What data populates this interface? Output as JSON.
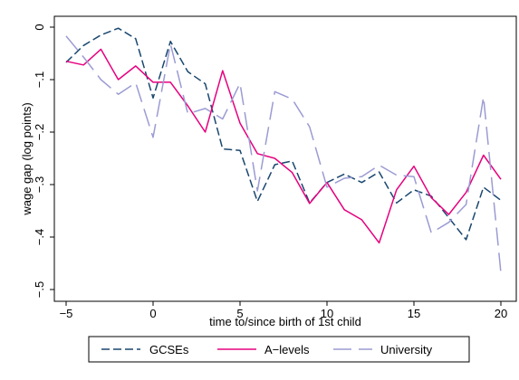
{
  "chart_data": {
    "type": "line",
    "title": "",
    "xlabel": "time to/since birth of 1st child",
    "ylabel": "wage gap (log points)",
    "xlim": [
      -5,
      20
    ],
    "ylim": [
      -0.52,
      0.01
    ],
    "x_ticks": [
      -5,
      0,
      5,
      10,
      15,
      20
    ],
    "y_ticks": [
      0,
      -0.1,
      -0.2,
      -0.3,
      -0.4,
      -0.5
    ],
    "x_tick_labels": [
      "−5",
      "0",
      "5",
      "10",
      "15",
      "20"
    ],
    "y_tick_labels": [
      "0",
      "−.1",
      "−.2",
      "−.3",
      "−.4",
      "−.5"
    ],
    "grid": false,
    "legend_position": "bottom",
    "x": [
      -5,
      -4,
      -3,
      -2,
      -1,
      0,
      1,
      2,
      3,
      4,
      5,
      6,
      7,
      8,
      9,
      10,
      11,
      12,
      13,
      14,
      15,
      16,
      17,
      18,
      19,
      20
    ],
    "series": [
      {
        "name": "GCSEs",
        "color": "#1a476f",
        "dash": "dashed",
        "values": [
          -0.067,
          -0.035,
          -0.015,
          -0.002,
          -0.022,
          -0.135,
          -0.027,
          -0.085,
          -0.108,
          -0.232,
          -0.235,
          -0.332,
          -0.262,
          -0.255,
          -0.335,
          -0.296,
          -0.28,
          -0.296,
          -0.276,
          -0.335,
          -0.31,
          -0.322,
          -0.363,
          -0.405,
          -0.305,
          -0.33
        ]
      },
      {
        "name": "A−levels",
        "color": "#e6007e",
        "dash": "solid",
        "values": [
          -0.065,
          -0.072,
          -0.042,
          -0.1,
          -0.074,
          -0.105,
          -0.105,
          -0.15,
          -0.2,
          -0.083,
          -0.183,
          -0.241,
          -0.25,
          -0.277,
          -0.336,
          -0.296,
          -0.348,
          -0.367,
          -0.411,
          -0.31,
          -0.265,
          -0.325,
          -0.357,
          -0.315,
          -0.244,
          -0.29
        ]
      },
      {
        "name": "University",
        "color": "#9b9bd3",
        "dash": "longdash",
        "values": [
          -0.017,
          -0.057,
          -0.1,
          -0.128,
          -0.106,
          -0.21,
          -0.032,
          -0.165,
          -0.155,
          -0.175,
          -0.107,
          -0.312,
          -0.123,
          -0.137,
          -0.19,
          -0.305,
          -0.288,
          -0.285,
          -0.263,
          -0.282,
          -0.285,
          -0.392,
          -0.372,
          -0.338,
          -0.133,
          -0.468
        ]
      }
    ]
  }
}
